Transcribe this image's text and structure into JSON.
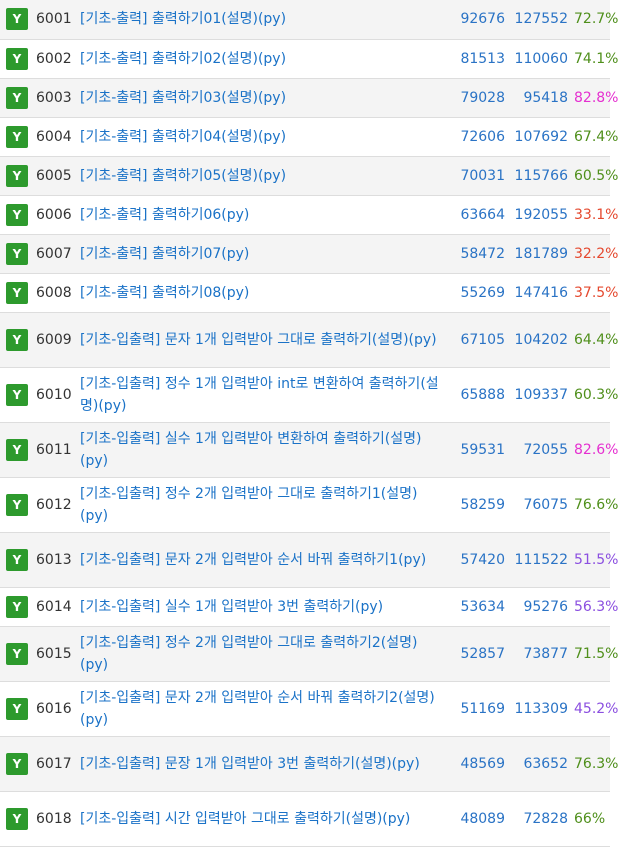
{
  "badge_label": "Y",
  "colors": {
    "badge": "#2d9a2d",
    "title": "#1a72c7",
    "count": "#2a73c5",
    "rate_green": "#4f8f1b",
    "rate_pink": "#e52fd0",
    "rate_red": "#e5492f",
    "rate_purple": "#8b4fe0"
  },
  "problems": [
    {
      "id": "6001",
      "title": "[기초-출력] 출력하기01(설명)(py)",
      "solved": "92676",
      "submitted": "127552",
      "rate": "72.7%",
      "rate_color": "#4f8f1b"
    },
    {
      "id": "6002",
      "title": "[기초-출력] 출력하기02(설명)(py)",
      "solved": "81513",
      "submitted": "110060",
      "rate": "74.1%",
      "rate_color": "#4f8f1b"
    },
    {
      "id": "6003",
      "title": "[기초-출력] 출력하기03(설명)(py)",
      "solved": "79028",
      "submitted": "95418",
      "rate": "82.8%",
      "rate_color": "#e52fd0"
    },
    {
      "id": "6004",
      "title": "[기초-출력] 출력하기04(설명)(py)",
      "solved": "72606",
      "submitted": "107692",
      "rate": "67.4%",
      "rate_color": "#4f8f1b"
    },
    {
      "id": "6005",
      "title": "[기초-출력] 출력하기05(설명)(py)",
      "solved": "70031",
      "submitted": "115766",
      "rate": "60.5%",
      "rate_color": "#4f8f1b"
    },
    {
      "id": "6006",
      "title": "[기초-출력] 출력하기06(py)",
      "solved": "63664",
      "submitted": "192055",
      "rate": "33.1%",
      "rate_color": "#e5492f"
    },
    {
      "id": "6007",
      "title": "[기초-출력] 출력하기07(py)",
      "solved": "58472",
      "submitted": "181789",
      "rate": "32.2%",
      "rate_color": "#e5492f"
    },
    {
      "id": "6008",
      "title": "[기초-출력] 출력하기08(py)",
      "solved": "55269",
      "submitted": "147416",
      "rate": "37.5%",
      "rate_color": "#e5492f"
    },
    {
      "id": "6009",
      "title": "[기초-입출력] 문자 1개 입력받아 그대로 출력하기(설명)(py)",
      "solved": "67105",
      "submitted": "104202",
      "rate": "64.4%",
      "rate_color": "#4f8f1b"
    },
    {
      "id": "6010",
      "title": "[기초-입출력] 정수 1개 입력받아 int로 변환하여 출력하기(설명)(py)",
      "solved": "65888",
      "submitted": "109337",
      "rate": "60.3%",
      "rate_color": "#4f8f1b"
    },
    {
      "id": "6011",
      "title": "[기초-입출력] 실수 1개 입력받아 변환하여 출력하기(설명)(py)",
      "solved": "59531",
      "submitted": "72055",
      "rate": "82.6%",
      "rate_color": "#e52fd0"
    },
    {
      "id": "6012",
      "title": "[기초-입출력] 정수 2개 입력받아 그대로 출력하기1(설명)(py)",
      "solved": "58259",
      "submitted": "76075",
      "rate": "76.6%",
      "rate_color": "#4f8f1b"
    },
    {
      "id": "6013",
      "title": "[기초-입출력] 문자 2개 입력받아 순서 바꿔 출력하기1(py)",
      "solved": "57420",
      "submitted": "111522",
      "rate": "51.5%",
      "rate_color": "#8b4fe0"
    },
    {
      "id": "6014",
      "title": "[기초-입출력] 실수 1개 입력받아 3번 출력하기(py)",
      "solved": "53634",
      "submitted": "95276",
      "rate": "56.3%",
      "rate_color": "#8b4fe0"
    },
    {
      "id": "6015",
      "title": "[기초-입출력] 정수 2개 입력받아 그대로 출력하기2(설명)(py)",
      "solved": "52857",
      "submitted": "73877",
      "rate": "71.5%",
      "rate_color": "#4f8f1b"
    },
    {
      "id": "6016",
      "title": "[기초-입출력] 문자 2개 입력받아 순서 바꿔 출력하기2(설명)(py)",
      "solved": "51169",
      "submitted": "113309",
      "rate": "45.2%",
      "rate_color": "#8b4fe0"
    },
    {
      "id": "6017",
      "title": "[기초-입출력] 문장 1개 입력받아 3번 출력하기(설명)(py)",
      "solved": "48569",
      "submitted": "63652",
      "rate": "76.3%",
      "rate_color": "#4f8f1b"
    },
    {
      "id": "6018",
      "title": "[기초-입출력] 시간 입력받아 그대로 출력하기(설명)(py)",
      "solved": "48089",
      "submitted": "72828",
      "rate": "66%",
      "rate_color": "#4f8f1b"
    }
  ]
}
